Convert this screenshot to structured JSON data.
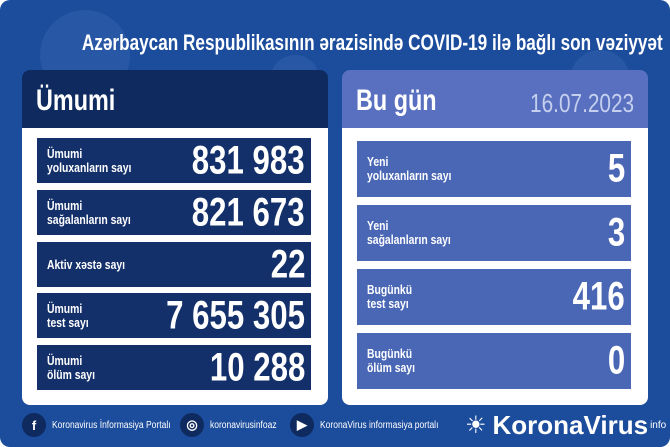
{
  "title": "Azərbaycan Respublikasının ərazisində COVID-19 ilə bağlı son vəziyyət",
  "left": {
    "header": "Ümumi",
    "rows": [
      {
        "label": "Ümumi\nyoluxanların sayı",
        "value": "831 983"
      },
      {
        "label": "Ümumi\nsağalanların sayı",
        "value": "821 673"
      },
      {
        "label": "Aktiv xəstə sayı",
        "value": "22"
      },
      {
        "label": "Ümumi\ntest sayı",
        "value": "7 655 305"
      },
      {
        "label": "Ümumi\nölüm sayı",
        "value": "10 288"
      }
    ]
  },
  "right": {
    "header": "Bu gün",
    "date": "16.07.2023",
    "rows": [
      {
        "label": "Yeni\nyoluxanların sayı",
        "value": "5"
      },
      {
        "label": "Yeni\nsağalanların sayı",
        "value": "3"
      },
      {
        "label": "Bugünkü\ntest sayı",
        "value": "416"
      },
      {
        "label": "Bugünkü\nölüm sayı",
        "value": "0"
      }
    ]
  },
  "footer": {
    "facebook": "Koronavirus İnformasiya Portalı",
    "instagram": "koronavirusinfoaz",
    "youtube": "KoronaVirus informasiya portalı",
    "logo": "KoronaVirus",
    "logo_sup": "info"
  },
  "colors": {
    "background": "#1c4c9c",
    "left_row": "#14306a",
    "right_row": "#4a67b5"
  }
}
